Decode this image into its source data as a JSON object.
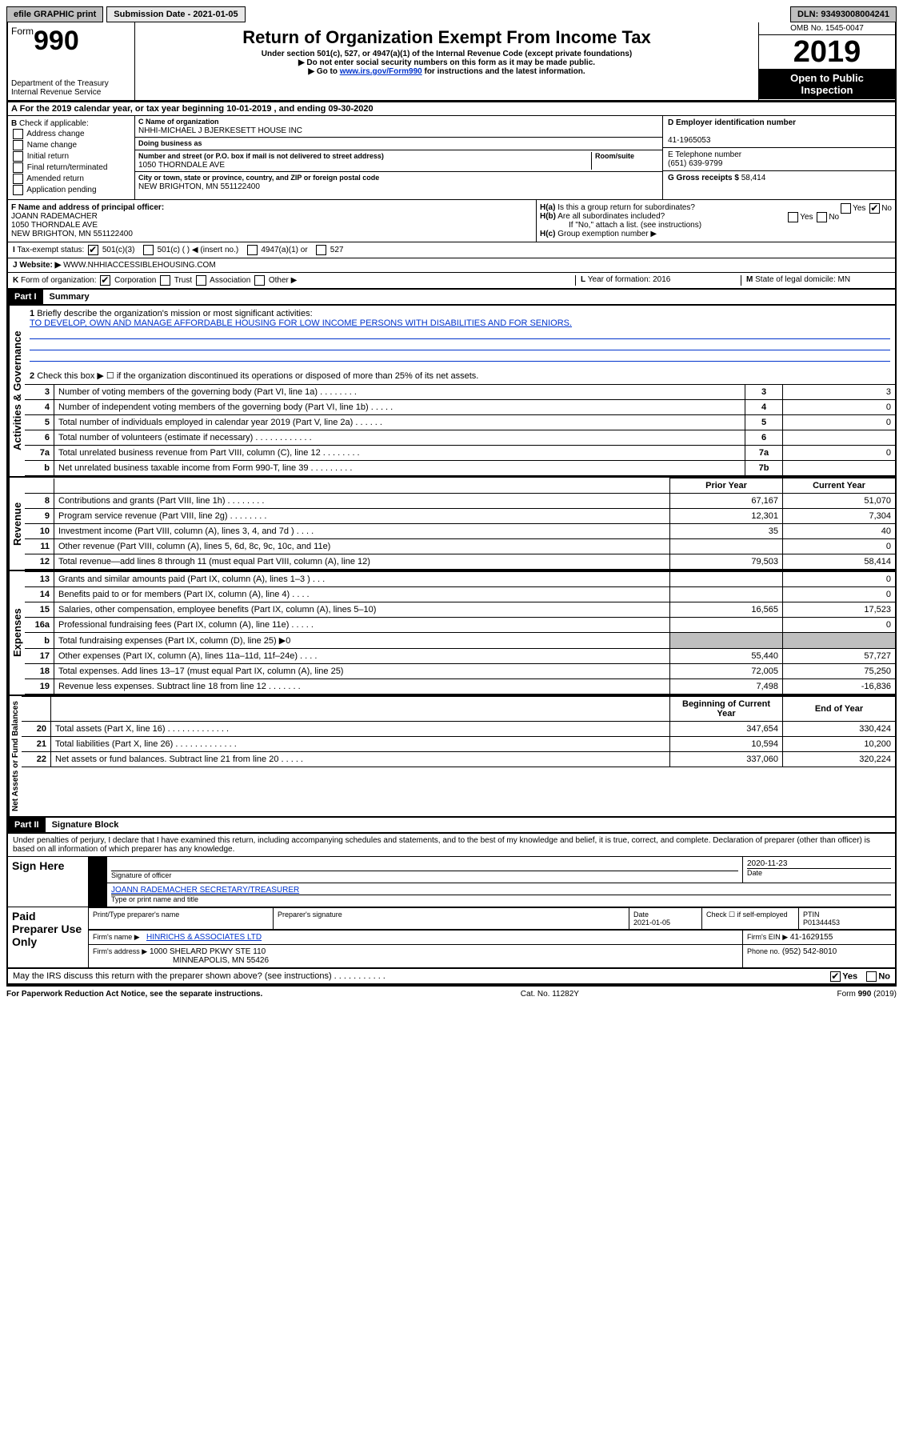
{
  "top": {
    "efile": "efile GRAPHIC print",
    "submission_label": "Submission Date - 2021-01-05",
    "dln": "DLN: 93493008004241"
  },
  "header": {
    "form_word": "Form",
    "form_num": "990",
    "dept": "Department of the Treasury\nInternal Revenue Service",
    "title": "Return of Organization Exempt From Income Tax",
    "sub1": "Under section 501(c), 527, or 4947(a)(1) of the Internal Revenue Code (except private foundations)",
    "sub2": "▶ Do not enter social security numbers on this form as it may be made public.",
    "sub3_pre": "▶ Go to ",
    "sub3_link": "www.irs.gov/Form990",
    "sub3_post": " for instructions and the latest information.",
    "omb": "OMB No. 1545-0047",
    "year": "2019",
    "badge1": "Open to Public",
    "badge2": "Inspection"
  },
  "A": {
    "text": "For the 2019 calendar year, or tax year beginning 10-01-2019    , and ending 09-30-2020"
  },
  "B": {
    "label": "Check if applicable:",
    "opts": [
      "Address change",
      "Name change",
      "Initial return",
      "Final return/terminated",
      "Amended return",
      "Application pending"
    ]
  },
  "C": {
    "name_lbl": "C Name of organization",
    "name": "NHHI-MICHAEL J BJERKESETT HOUSE INC",
    "dba_lbl": "Doing business as",
    "addr_lbl": "Number and street (or P.O. box if mail is not delivered to street address)",
    "room_lbl": "Room/suite",
    "addr": "1050 THORNDALE AVE",
    "city_lbl": "City or town, state or province, country, and ZIP or foreign postal code",
    "city": "NEW BRIGHTON, MN  551122400"
  },
  "D": {
    "lbl": "D Employer identification number",
    "val": "41-1965053"
  },
  "E": {
    "lbl": "E Telephone number",
    "val": "(651) 639-9799"
  },
  "G": {
    "lbl": "G Gross receipts $",
    "val": "58,414"
  },
  "F": {
    "lbl": "F  Name and address of principal officer:",
    "name": "JOANN RADEMACHER",
    "addr1": "1050 THORNDALE AVE",
    "addr2": "NEW BRIGHTON, MN  551122400"
  },
  "H": {
    "a": "Is this a group return for subordinates?",
    "b": "Are all subordinates included?",
    "note": "If \"No,\" attach a list. (see instructions)",
    "c": "Group exemption number ▶"
  },
  "I": {
    "lbl": "Tax-exempt status:",
    "opts": [
      "501(c)(3)",
      "501(c) (   ) ◀ (insert no.)",
      "4947(a)(1) or",
      "527"
    ]
  },
  "J": {
    "lbl": "Website: ▶",
    "val": "WWW.NHHIACCESSIBLEHOUSING.COM"
  },
  "K": {
    "lbl": "Form of organization:",
    "opts": [
      "Corporation",
      "Trust",
      "Association",
      "Other ▶"
    ]
  },
  "L": {
    "lbl": "Year of formation:",
    "val": "2016"
  },
  "M": {
    "lbl": "State of legal domicile:",
    "val": "MN"
  },
  "part1": {
    "hdr": "Part I",
    "title": "Summary",
    "q1_lbl": "Briefly describe the organization's mission or most significant activities:",
    "q1_val": "TO DEVELOP, OWN AND MANAGE AFFORDABLE HOUSING FOR LOW INCOME PERSONS WITH DISABILITIES AND FOR SENIORS.",
    "q2": "Check this box ▶ ☐  if the organization discontinued its operations or disposed of more than 25% of its net assets.",
    "sideA": "Activities & Governance",
    "sideB": "Revenue",
    "sideC": "Expenses",
    "sideD": "Net Assets or Fund Balances",
    "rows_gov": [
      {
        "n": "3",
        "d": "Number of voting members of the governing body (Part VI, line 1a)   .    .    .    .    .    .    .    .",
        "b": "3",
        "v": "3"
      },
      {
        "n": "4",
        "d": "Number of independent voting members of the governing body (Part VI, line 1b)   .    .    .    .    .",
        "b": "4",
        "v": "0"
      },
      {
        "n": "5",
        "d": "Total number of individuals employed in calendar year 2019 (Part V, line 2a)   .    .    .    .    .    .",
        "b": "5",
        "v": "0"
      },
      {
        "n": "6",
        "d": "Total number of volunteers (estimate if necessary)   .    .    .    .    .    .    .    .    .    .    .    .",
        "b": "6",
        "v": ""
      },
      {
        "n": "7a",
        "d": "Total unrelated business revenue from Part VIII, column (C), line 12   .    .    .    .    .    .    .    .",
        "b": "7a",
        "v": "0"
      },
      {
        "n": "b",
        "d": "Net unrelated business taxable income from Form 990-T, line 39   .    .    .    .    .    .    .    .    .",
        "b": "7b",
        "v": ""
      }
    ],
    "hdr_prior": "Prior Year",
    "hdr_curr": "Current Year",
    "rows_rev": [
      {
        "n": "8",
        "d": "Contributions and grants (Part VIII, line 1h)   .    .    .    .    .    .    .    .",
        "p": "67,167",
        "c": "51,070"
      },
      {
        "n": "9",
        "d": "Program service revenue (Part VIII, line 2g)   .    .    .    .    .    .    .    .",
        "p": "12,301",
        "c": "7,304"
      },
      {
        "n": "10",
        "d": "Investment income (Part VIII, column (A), lines 3, 4, and 7d )   .    .    .    .",
        "p": "35",
        "c": "40"
      },
      {
        "n": "11",
        "d": "Other revenue (Part VIII, column (A), lines 5, 6d, 8c, 9c, 10c, and 11e)",
        "p": "",
        "c": "0"
      },
      {
        "n": "12",
        "d": "Total revenue—add lines 8 through 11 (must equal Part VIII, column (A), line 12)",
        "p": "79,503",
        "c": "58,414"
      }
    ],
    "rows_exp": [
      {
        "n": "13",
        "d": "Grants and similar amounts paid (Part IX, column (A), lines 1–3 )   .    .    .",
        "p": "",
        "c": "0"
      },
      {
        "n": "14",
        "d": "Benefits paid to or for members (Part IX, column (A), line 4)   .    .    .    .",
        "p": "",
        "c": "0"
      },
      {
        "n": "15",
        "d": "Salaries, other compensation, employee benefits (Part IX, column (A), lines 5–10)",
        "p": "16,565",
        "c": "17,523"
      },
      {
        "n": "16a",
        "d": "Professional fundraising fees (Part IX, column (A), line 11e)   .    .    .    .    .",
        "p": "",
        "c": "0"
      },
      {
        "n": "b",
        "d": "Total fundraising expenses (Part IX, column (D), line 25) ▶0",
        "p": "grey",
        "c": "grey"
      },
      {
        "n": "17",
        "d": "Other expenses (Part IX, column (A), lines 11a–11d, 11f–24e)   .    .    .    .",
        "p": "55,440",
        "c": "57,727"
      },
      {
        "n": "18",
        "d": "Total expenses. Add lines 13–17 (must equal Part IX, column (A), line 25)",
        "p": "72,005",
        "c": "75,250"
      },
      {
        "n": "19",
        "d": "Revenue less expenses. Subtract line 18 from line 12   .    .    .    .    .    .    .",
        "p": "7,498",
        "c": "-16,836"
      }
    ],
    "hdr_beg": "Beginning of Current Year",
    "hdr_end": "End of Year",
    "rows_net": [
      {
        "n": "20",
        "d": "Total assets (Part X, line 16)   .    .    .    .    .    .    .    .    .    .    .    .    .",
        "p": "347,654",
        "c": "330,424"
      },
      {
        "n": "21",
        "d": "Total liabilities (Part X, line 26)   .    .    .    .    .    .    .    .    .    .    .    .    .",
        "p": "10,594",
        "c": "10,200"
      },
      {
        "n": "22",
        "d": "Net assets or fund balances. Subtract line 21 from line 20   .    .    .    .    .",
        "p": "337,060",
        "c": "320,224"
      }
    ]
  },
  "part2": {
    "hdr": "Part II",
    "title": "Signature Block",
    "decl": "Under penalties of perjury, I declare that I have examined this return, including accompanying schedules and statements, and to the best of my knowledge and belief, it is true, correct, and complete. Declaration of preparer (other than officer) is based on all information of which preparer has any knowledge.",
    "sign_here": "Sign Here",
    "sig_officer": "Signature of officer",
    "sig_date": "2020-11-23",
    "date_lbl": "Date",
    "officer_name": "JOANN RADEMACHER  SECRETARY/TREASURER",
    "officer_sub": "Type or print name and title",
    "paid": "Paid Preparer Use Only",
    "prep_name_lbl": "Print/Type preparer's name",
    "prep_sig_lbl": "Preparer's signature",
    "prep_date": "2021-01-05",
    "check_self": "Check ☐ if self-employed",
    "ptin_lbl": "PTIN",
    "ptin": "P01344453",
    "firm_name_lbl": "Firm's name    ▶",
    "firm_name": "HINRICHS & ASSOCIATES LTD",
    "firm_ein_lbl": "Firm's EIN ▶",
    "firm_ein": "41-1629155",
    "firm_addr_lbl": "Firm's address ▶",
    "firm_addr1": "1000 SHELARD PKWY STE 110",
    "firm_addr2": "MINNEAPOLIS, MN  55426",
    "phone_lbl": "Phone no.",
    "phone": "(952) 542-8010",
    "discuss": "May the IRS discuss this return with the preparer shown above? (see instructions)   .    .    .    .    .    .    .    .    .    .    ."
  },
  "footer": {
    "left": "For Paperwork Reduction Act Notice, see the separate instructions.",
    "mid": "Cat. No. 11282Y",
    "right": "Form 990 (2019)"
  }
}
